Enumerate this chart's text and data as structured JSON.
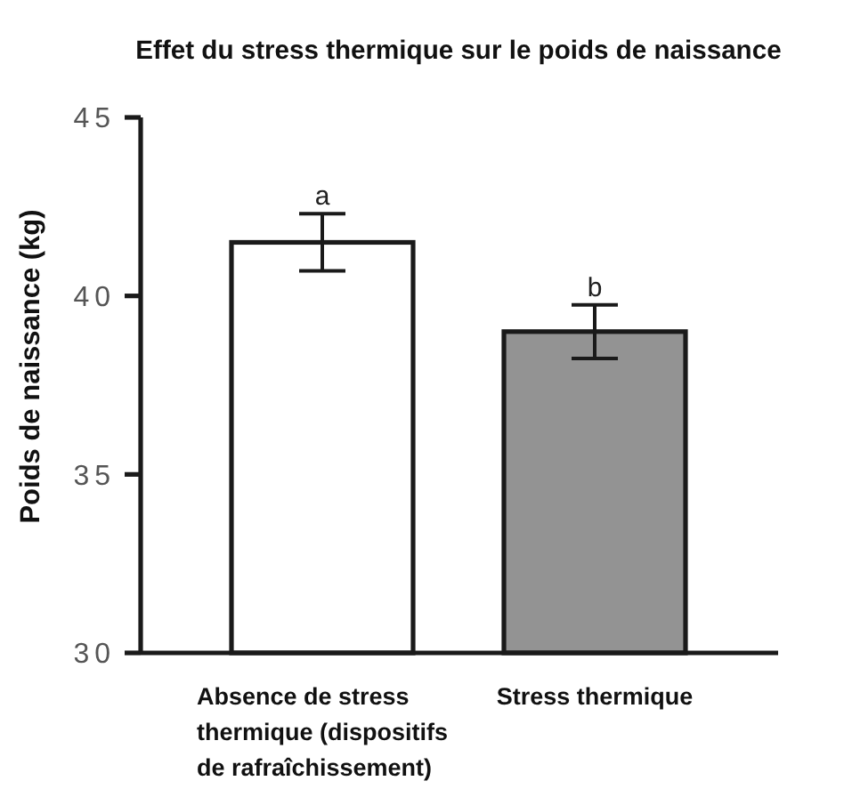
{
  "chart_data": {
    "type": "bar",
    "title": "Effet du stress thermique sur le poids de naissance",
    "ylabel": "Poids de naissance (kg)",
    "categories": [
      "Absence de stress thermique (dispositifs de rafraîchissement)",
      "Stress thermique"
    ],
    "values": [
      41.5,
      39.0
    ],
    "colors": [
      "#ffffff",
      "#939393"
    ],
    "errors": [
      0.8,
      0.75
    ],
    "ylim": [
      30,
      45
    ],
    "yticks": [
      30,
      35,
      40,
      45
    ],
    "annotations": [
      {
        "text": "a",
        "x": "Absence de stress thermique (dispositifs de rafraîchissement)",
        "y": 42.3
      },
      {
        "text": "b",
        "x": "Stress thermique",
        "y": 39.75
      }
    ]
  }
}
